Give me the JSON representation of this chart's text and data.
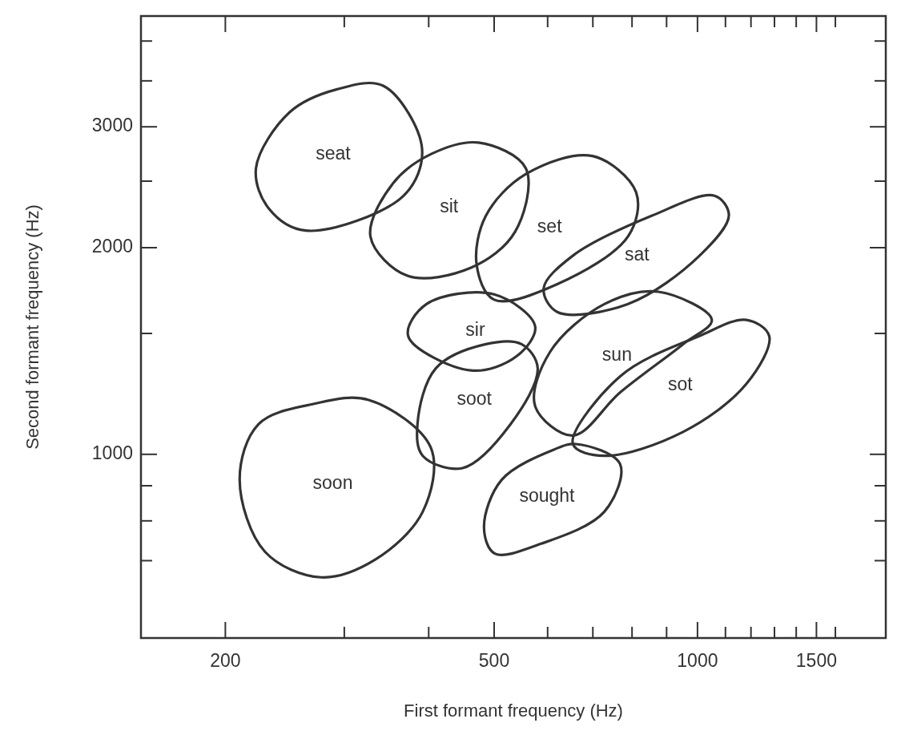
{
  "chart_data": {
    "type": "scatter",
    "xlabel": "First formant frequency (Hz)",
    "ylabel": "Second formant frequency (Hz)",
    "log": "xy",
    "grid": false,
    "xlim": [
      150,
      1900
    ],
    "ylim": [
      540,
      4350
    ],
    "xticks": [
      200,
      {
        "value": 300,
        "label": null
      },
      {
        "value": 400,
        "label": null
      },
      500,
      {
        "value": 600,
        "label": null
      },
      {
        "value": 700,
        "label": null
      },
      {
        "value": 800,
        "label": null
      },
      {
        "value": 900,
        "label": null
      },
      1000,
      {
        "value": 1100,
        "label": null
      },
      {
        "value": 1200,
        "label": null
      },
      {
        "value": 1300,
        "label": null
      },
      {
        "value": 1400,
        "label": null
      },
      1500,
      {
        "value": 1600,
        "label": null
      }
    ],
    "yticks": [
      {
        "value": 700,
        "label": null
      },
      {
        "value": 800,
        "label": null
      },
      {
        "value": 900,
        "label": null
      },
      1000,
      {
        "value": 1500,
        "label": null
      },
      2000,
      {
        "value": 2500,
        "label": null
      },
      3000,
      {
        "value": 3500,
        "label": null
      },
      {
        "value": 4000,
        "label": null
      }
    ],
    "annotations": [
      "seat",
      "sit",
      "set",
      "sat",
      "sir",
      "sun",
      "soot",
      "sot",
      "soon",
      "sought"
    ]
  }
}
